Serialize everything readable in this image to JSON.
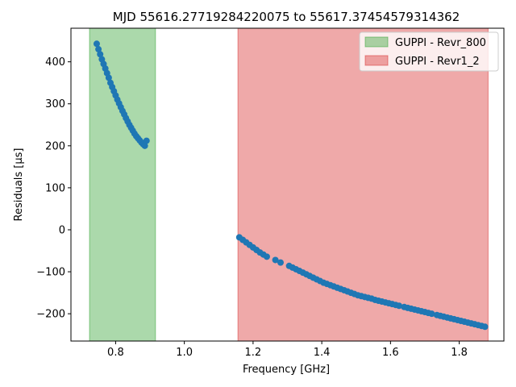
{
  "chart_data": {
    "type": "scatter",
    "title": "MJD 55616.27719284220075 to 55617.37454579314362",
    "xlabel": "Frequency [GHz]",
    "ylabel": "Residuals [μs]",
    "xlim": [
      0.67,
      1.93
    ],
    "ylim": [
      -265,
      480
    ],
    "xticks": [
      0.8,
      1.0,
      1.2,
      1.4,
      1.6,
      1.8
    ],
    "xtick_labels": [
      "0.8",
      "1.0",
      "1.2",
      "1.4",
      "1.6",
      "1.8"
    ],
    "yticks": [
      -200,
      -100,
      0,
      100,
      200,
      300,
      400
    ],
    "ytick_labels": [
      "−200",
      "−100",
      "0",
      "100",
      "200",
      "300",
      "400"
    ],
    "grid": false,
    "legend_position": "top-right",
    "bands": [
      {
        "name": "GUPPI - Revr_800",
        "x0": 0.724,
        "x1": 0.916,
        "color": "#2ca02c"
      },
      {
        "name": "GUPPI - Revr1_2",
        "x0": 1.156,
        "x1": 1.884,
        "color": "#d62728"
      }
    ],
    "series": [
      {
        "color": "#1f77b4",
        "x": [
          0.745,
          0.75,
          0.755,
          0.76,
          0.765,
          0.77,
          0.775,
          0.78,
          0.785,
          0.79,
          0.795,
          0.8,
          0.805,
          0.81,
          0.815,
          0.82,
          0.825,
          0.83,
          0.835,
          0.84,
          0.845,
          0.85,
          0.855,
          0.86,
          0.865,
          0.87,
          0.875,
          0.88,
          0.885,
          0.89,
          1.16,
          1.17,
          1.18,
          1.19,
          1.2,
          1.21,
          1.22,
          1.23,
          1.24,
          1.265,
          1.28,
          1.305,
          1.315,
          1.325,
          1.335,
          1.345,
          1.355,
          1.365,
          1.375,
          1.385,
          1.395,
          1.405,
          1.415,
          1.425,
          1.435,
          1.445,
          1.455,
          1.465,
          1.475,
          1.485,
          1.495,
          1.505,
          1.515,
          1.525,
          1.535,
          1.545,
          1.555,
          1.565,
          1.575,
          1.585,
          1.595,
          1.605,
          1.615,
          1.625,
          1.64,
          1.65,
          1.66,
          1.67,
          1.68,
          1.69,
          1.7,
          1.71,
          1.72,
          1.735,
          1.745,
          1.755,
          1.765,
          1.775,
          1.785,
          1.795,
          1.805,
          1.815,
          1.825,
          1.835,
          1.845,
          1.855,
          1.865,
          1.875
        ],
        "y": [
          443,
          430,
          418,
          406,
          395,
          384,
          373,
          362,
          350,
          340,
          330,
          320,
          310,
          301,
          292,
          283,
          275,
          266,
          258,
          250,
          243,
          236,
          229,
          223,
          218,
          213,
          208,
          204,
          200,
          212,
          -18,
          -24,
          -30,
          -36,
          -42,
          -48,
          -54,
          -59,
          -64,
          -72,
          -78,
          -86,
          -90,
          -94,
          -98,
          -102,
          -106,
          -110,
          -114,
          -118,
          -122,
          -126,
          -129,
          -132,
          -135,
          -138,
          -141,
          -144,
          -147,
          -150,
          -153,
          -156,
          -158,
          -160,
          -162,
          -164,
          -167,
          -169,
          -171,
          -173,
          -175,
          -177,
          -179,
          -181,
          -184,
          -186,
          -188,
          -190,
          -192,
          -194,
          -196,
          -198,
          -200,
          -203,
          -205,
          -207,
          -209,
          -211,
          -213,
          -215,
          -217,
          -219,
          -221,
          -223,
          -225,
          -227,
          -229,
          -231
        ]
      }
    ]
  }
}
